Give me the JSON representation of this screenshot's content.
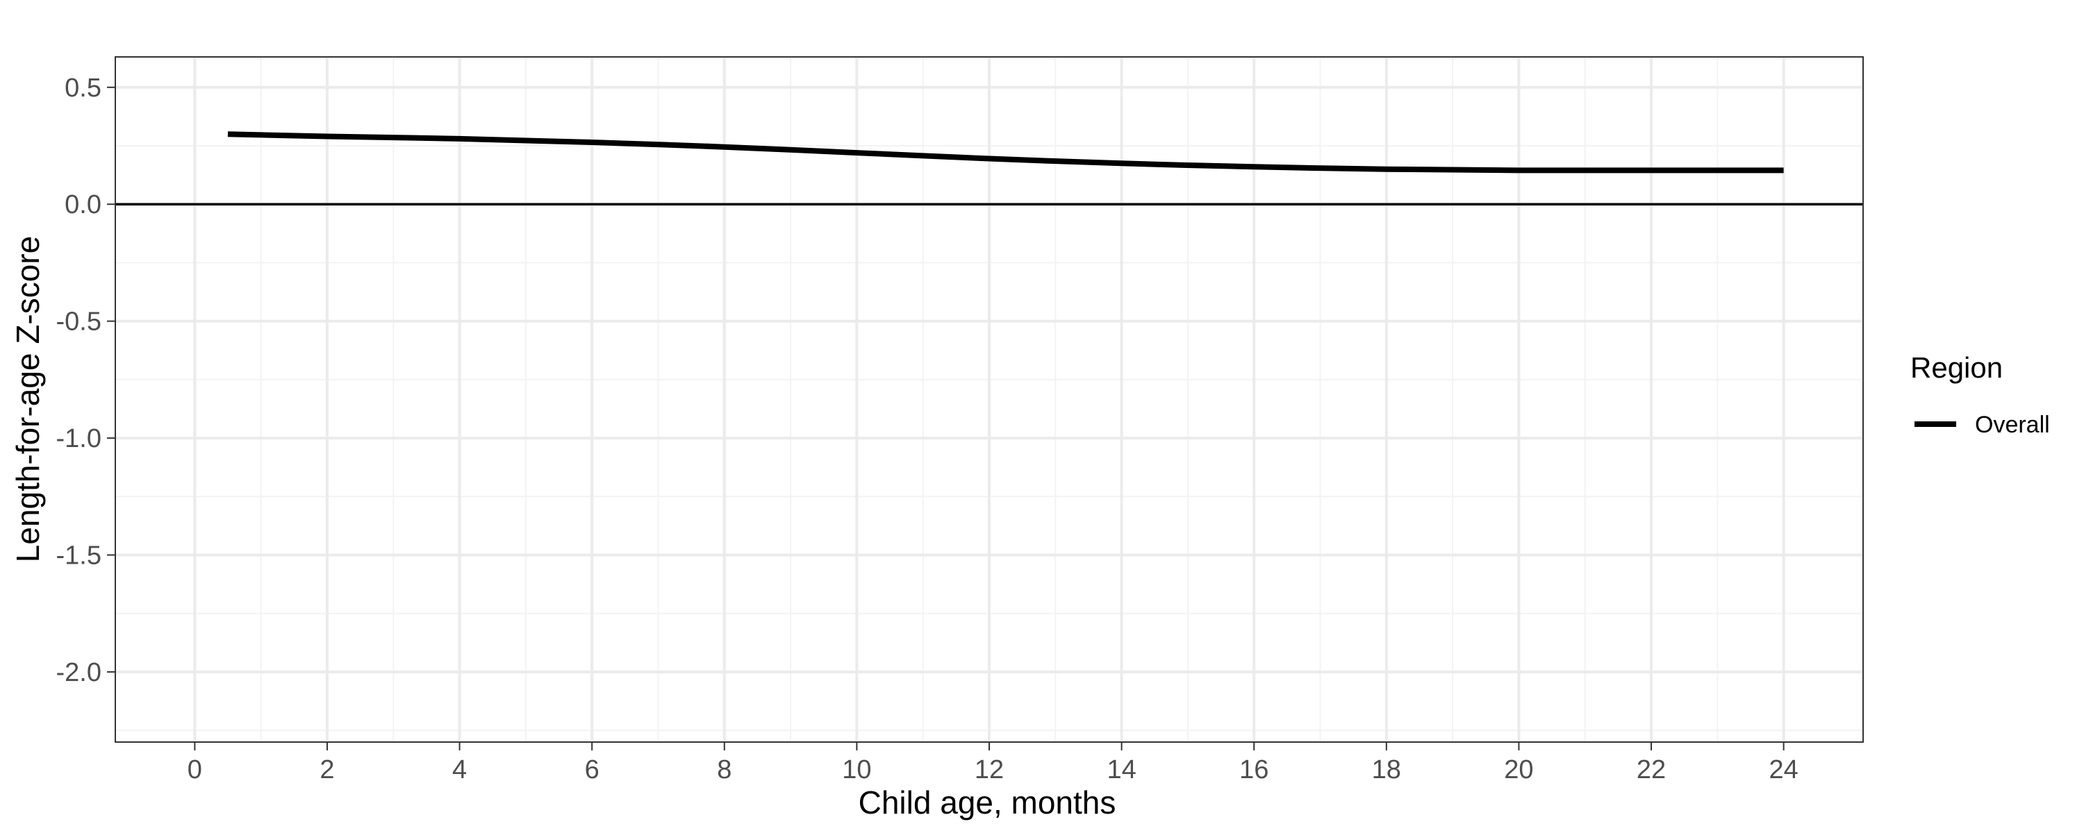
{
  "chart_data": {
    "type": "line",
    "title": "",
    "xlabel": "Child age, months",
    "ylabel": "Length-for-age Z-score",
    "xlim": [
      -1.2,
      25.2
    ],
    "ylim": [
      -2.3,
      0.63
    ],
    "x_ticks": [
      0,
      2,
      4,
      6,
      8,
      10,
      12,
      14,
      16,
      18,
      20,
      22,
      24
    ],
    "x_tick_labels": [
      "0",
      "2",
      "4",
      "6",
      "8",
      "10",
      "12",
      "14",
      "16",
      "18",
      "20",
      "22",
      "24"
    ],
    "y_ticks": [
      0.5,
      0.0,
      -0.5,
      -1.0,
      -1.5,
      -2.0
    ],
    "y_tick_labels": [
      "0.5",
      "0.0",
      "-0.5",
      "-1.0",
      "-1.5",
      "-2.0"
    ],
    "reference_line_y": 0,
    "grid": true,
    "legend": {
      "title": "Region",
      "placement": "right",
      "entries": [
        "Overall"
      ]
    },
    "series": [
      {
        "name": "Overall",
        "color": "#000000",
        "x": [
          0.5,
          2,
          4,
          6,
          8,
          10,
          12,
          14,
          16,
          18,
          20,
          22,
          24
        ],
        "y": [
          0.3,
          0.29,
          0.28,
          0.265,
          0.245,
          0.22,
          0.195,
          0.175,
          0.16,
          0.15,
          0.145,
          0.145,
          0.145
        ]
      }
    ]
  }
}
